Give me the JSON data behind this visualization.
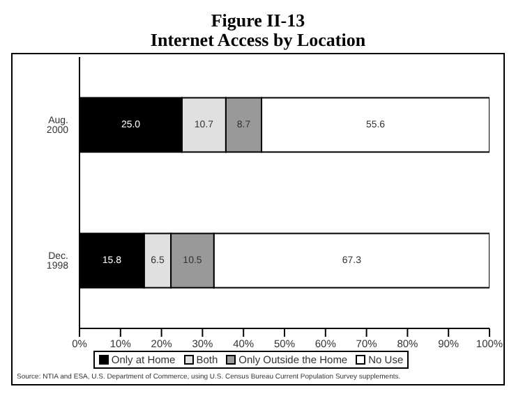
{
  "chart_data": {
    "type": "bar",
    "orientation": "horizontal",
    "stacked": true,
    "title": "Figure II-13",
    "subtitle": "Internet Access by Location",
    "categories": [
      "Aug. 2000",
      "Dec. 1998"
    ],
    "series": [
      {
        "name": "Only at Home",
        "color": "#000000",
        "values": [
          25.0,
          15.8
        ],
        "value_labels": [
          "25.0",
          "15.8"
        ]
      },
      {
        "name": "Both",
        "color": "#e0e0e0",
        "values": [
          10.7,
          6.5
        ],
        "value_labels": [
          "10.7",
          "6.5"
        ]
      },
      {
        "name": "Only Outside the Home",
        "color": "#999999",
        "values": [
          8.7,
          10.5
        ],
        "value_labels": [
          "8.7",
          "10.5"
        ]
      },
      {
        "name": "No Use",
        "color": "#ffffff",
        "values": [
          55.6,
          67.3
        ],
        "value_labels": [
          "55.6",
          "67.3"
        ]
      }
    ],
    "xlim": [
      0,
      100
    ],
    "xticks": [
      {
        "value": 0,
        "label": "0%"
      },
      {
        "value": 10,
        "label": "10%"
      },
      {
        "value": 20,
        "label": "20%"
      },
      {
        "value": 30,
        "label": "30%"
      },
      {
        "value": 40,
        "label": "40%"
      },
      {
        "value": 50,
        "label": "50%"
      },
      {
        "value": 60,
        "label": "60%"
      },
      {
        "value": 70,
        "label": "70%"
      },
      {
        "value": 80,
        "label": "80%"
      },
      {
        "value": 90,
        "label": "90%"
      },
      {
        "value": 100,
        "label": "100%"
      }
    ],
    "grid": false,
    "legend": "bottom",
    "annotations": [
      "Source: NTIA and ESA, U.S. Department of Commerce, using U.S. Census Bureau Current Population Survey supplements."
    ]
  }
}
